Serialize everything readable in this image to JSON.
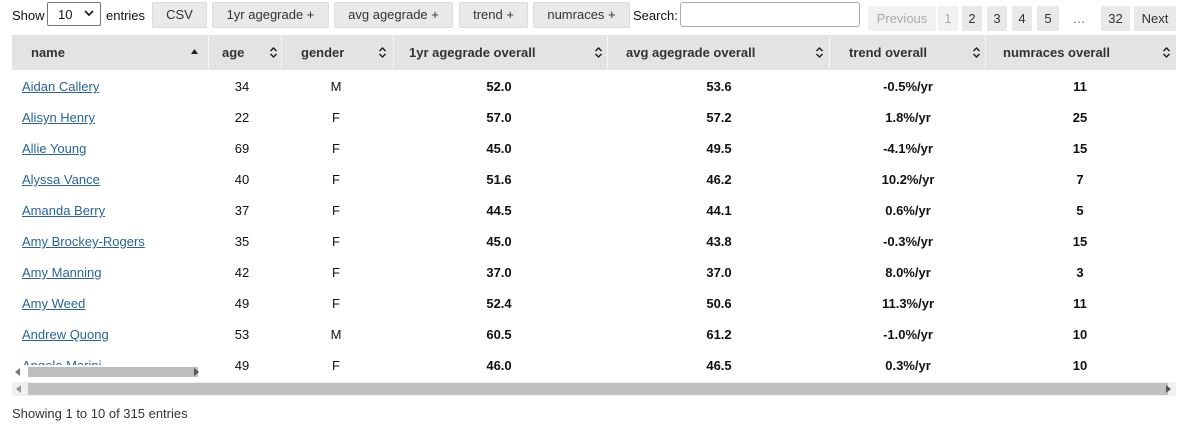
{
  "controls": {
    "show_label": "Show",
    "length_value": "10",
    "entries_label": "entries",
    "buttons": [
      "CSV",
      "1yr agegrade +",
      "avg agegrade +",
      "trend +",
      "numraces +"
    ],
    "search_label": "Search:",
    "search_value": ""
  },
  "pagination": {
    "previous": "Previous",
    "pages": [
      "1",
      "2",
      "3",
      "4",
      "5"
    ],
    "ellipsis": "…",
    "last": "32",
    "next": "Next"
  },
  "table": {
    "columns": [
      "name",
      "age",
      "gender",
      "1yr agegrade overall",
      "avg agegrade overall",
      "trend overall",
      "numraces overall"
    ],
    "rows": [
      {
        "name": "Aidan Callery",
        "age": "34",
        "gender": "M",
        "yr1": "52.0",
        "avg": "53.6",
        "trend": "-0.5%/yr",
        "numraces": "11"
      },
      {
        "name": "Alisyn Henry",
        "age": "22",
        "gender": "F",
        "yr1": "57.0",
        "avg": "57.2",
        "trend": "1.8%/yr",
        "numraces": "25"
      },
      {
        "name": "Allie Young",
        "age": "69",
        "gender": "F",
        "yr1": "45.0",
        "avg": "49.5",
        "trend": "-4.1%/yr",
        "numraces": "15"
      },
      {
        "name": "Alyssa Vance",
        "age": "40",
        "gender": "F",
        "yr1": "51.6",
        "avg": "46.2",
        "trend": "10.2%/yr",
        "numraces": "7"
      },
      {
        "name": "Amanda Berry",
        "age": "37",
        "gender": "F",
        "yr1": "44.5",
        "avg": "44.1",
        "trend": "0.6%/yr",
        "numraces": "5"
      },
      {
        "name": "Amy Brockey-Rogers",
        "age": "35",
        "gender": "F",
        "yr1": "45.0",
        "avg": "43.8",
        "trend": "-0.3%/yr",
        "numraces": "15"
      },
      {
        "name": "Amy Manning",
        "age": "42",
        "gender": "F",
        "yr1": "37.0",
        "avg": "37.0",
        "trend": "8.0%/yr",
        "numraces": "3"
      },
      {
        "name": "Amy Weed",
        "age": "49",
        "gender": "F",
        "yr1": "52.4",
        "avg": "50.6",
        "trend": "11.3%/yr",
        "numraces": "11"
      },
      {
        "name": "Andrew Quong",
        "age": "53",
        "gender": "M",
        "yr1": "60.5",
        "avg": "61.2",
        "trend": "-1.0%/yr",
        "numraces": "10"
      },
      {
        "name": "Angela Marini",
        "age": "49",
        "gender": "F",
        "yr1": "46.0",
        "avg": "46.5",
        "trend": "0.3%/yr",
        "numraces": "10"
      }
    ]
  },
  "info": "Showing 1 to 10 of 315 entries"
}
